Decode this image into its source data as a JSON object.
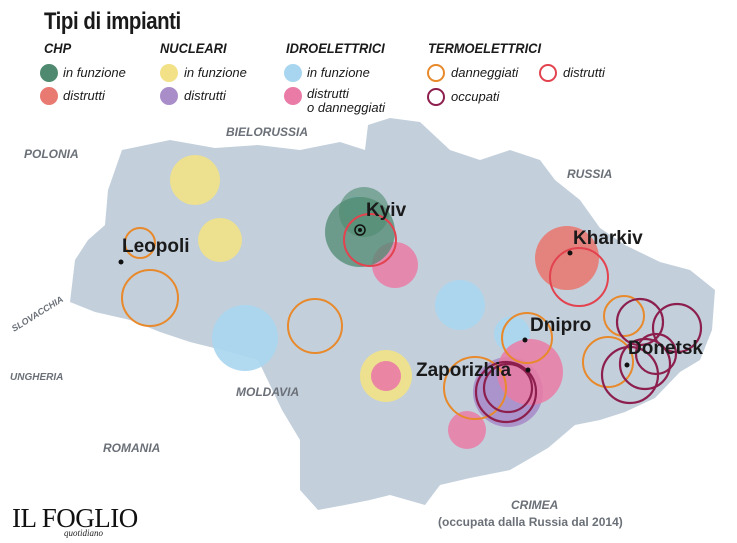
{
  "title": "Tipi di impianti",
  "legend": {
    "chp": {
      "heading": "CHP",
      "items": [
        {
          "label": "in funzione",
          "color": "#4f8a70",
          "style": "filled"
        },
        {
          "label": "distrutti",
          "color": "#e87a72",
          "style": "filled"
        }
      ]
    },
    "nucleari": {
      "heading": "NUCLEARI",
      "items": [
        {
          "label": "in funzione",
          "color": "#f2e186",
          "style": "filled"
        },
        {
          "label": "distrutti",
          "color": "#a98dc9",
          "style": "filled"
        }
      ]
    },
    "idroelettrici": {
      "heading": "IDROELETTRICI",
      "items": [
        {
          "label": "in funzione",
          "color": "#a8d6f0",
          "style": "filled"
        },
        {
          "label": "distrutti",
          "label2": "o danneggiati",
          "color": "#ea7ba6",
          "style": "filled"
        }
      ]
    },
    "termoelettrici": {
      "heading": "TERMOELETTRICI",
      "items": [
        {
          "label": "danneggiati",
          "color": "#e8892b",
          "style": "ring"
        },
        {
          "label": "distrutti",
          "color": "#e2434f",
          "style": "ring"
        },
        {
          "label": "occupati",
          "color": "#8c1f4d",
          "style": "ring"
        }
      ]
    }
  },
  "countries": {
    "bielorussia": "BIELORUSSIA",
    "polonia": "POLONIA",
    "russia": "RUSSIA",
    "slovacchia": "SLOVACCHIA",
    "ungheria": "UNGHERIA",
    "moldavia": "MOLDAVIA",
    "romania": "ROMANIA",
    "crimea": "CRIMEA",
    "crimea_note": "(occupata dalla Russia dal 2014)"
  },
  "cities": {
    "kyiv": "Kyiv",
    "leopoli": "Leopoli",
    "kharkiv": "Kharkiv",
    "dnipro": "Dnipro",
    "donetsk": "Donetsk",
    "zaporizhia": "Zaporizhia"
  },
  "colors": {
    "land": "#c3d0dc",
    "chp_ok": "#4f8a70",
    "chp_dist": "#e87a72",
    "nuc_ok": "#f2e186",
    "nuc_dist": "#a98dc9",
    "hydro_ok": "#a8d6f0",
    "hydro_dist": "#ea7ba6",
    "thermo_dmg": "#e8892b",
    "thermo_dist": "#e2434f",
    "thermo_occ": "#8c1f4d"
  },
  "logo": {
    "name": "IL FOGLIO",
    "sub": "quotidiano"
  }
}
